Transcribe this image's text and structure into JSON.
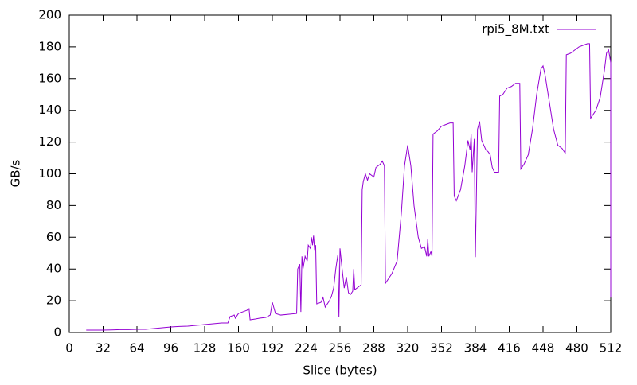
{
  "chart_data": {
    "type": "line",
    "xlabel": "Slice (bytes)",
    "ylabel": "GB/s",
    "x": [
      16,
      24,
      32,
      40,
      48,
      56,
      64,
      72,
      80,
      88,
      96,
      104,
      112,
      120,
      128,
      136,
      144,
      150,
      152,
      156,
      157,
      160,
      164,
      168,
      170,
      171,
      176,
      180,
      186,
      190,
      192,
      195,
      200,
      208,
      215,
      216,
      218,
      219,
      220,
      221,
      223,
      225,
      226,
      228,
      229,
      230,
      231,
      232,
      233,
      234,
      238,
      240,
      242,
      246,
      248,
      250,
      252,
      254,
      255,
      256,
      258,
      260,
      262,
      264,
      266,
      268,
      269,
      270,
      272,
      276,
      277,
      278,
      280,
      282,
      284,
      288,
      290,
      294,
      296,
      298,
      299,
      305,
      310,
      314,
      317,
      320,
      323,
      326,
      330,
      333,
      336,
      338,
      339,
      340,
      342,
      343,
      344,
      348,
      352,
      356,
      360,
      363,
      364,
      366,
      370,
      374,
      377,
      379,
      380,
      381,
      383,
      384,
      386,
      388,
      390,
      394,
      396,
      398,
      400,
      402,
      406,
      407,
      410,
      414,
      418,
      422,
      426,
      427,
      430,
      434,
      438,
      442,
      446,
      448,
      450,
      454,
      458,
      462,
      466,
      469,
      470,
      474,
      478,
      482,
      486,
      490,
      492,
      493,
      498,
      502,
      506,
      508,
      510,
      512,
      512
    ],
    "series": [
      {
        "name": "rpi5_8M.txt",
        "color": "#9400d3",
        "values": [
          1.5,
          1.5,
          1.5,
          1.6,
          1.8,
          1.8,
          2,
          2,
          2.5,
          3,
          3.5,
          3.8,
          4,
          4.5,
          5,
          5.5,
          6,
          6,
          10,
          11,
          9,
          12,
          13,
          14,
          15,
          8,
          8.5,
          9,
          9.5,
          11,
          19,
          12,
          11,
          11.5,
          12,
          40,
          43,
          13,
          48,
          40,
          48,
          45,
          55,
          53,
          60,
          55,
          61,
          52,
          55,
          18,
          19,
          22,
          16,
          20,
          23,
          28,
          40,
          49,
          10,
          53,
          40,
          28,
          35,
          25,
          24,
          26,
          40,
          27,
          28,
          30,
          90,
          95,
          100,
          96,
          100,
          98,
          104,
          106,
          108,
          105,
          31,
          37,
          45,
          75,
          105,
          118,
          105,
          80,
          60,
          53,
          54,
          48,
          59,
          48,
          51,
          48,
          125,
          127,
          130,
          131,
          132,
          132,
          86,
          83,
          90,
          105,
          121,
          115,
          125,
          101,
          122,
          47.5,
          128,
          133,
          121,
          115,
          114,
          112,
          104,
          101,
          101,
          149,
          150,
          154,
          155,
          157,
          157,
          103,
          106,
          112,
          128,
          150,
          166,
          168,
          162,
          145,
          128,
          118,
          116,
          113,
          175,
          176,
          178,
          180,
          181,
          182,
          182,
          135,
          140,
          148,
          165,
          176,
          178,
          170,
          22
        ]
      }
    ],
    "xlim": [
      0,
      512
    ],
    "xticks": [
      0,
      32,
      64,
      96,
      128,
      160,
      192,
      224,
      256,
      288,
      320,
      352,
      384,
      416,
      448,
      480,
      512
    ],
    "ylim": [
      0,
      200
    ],
    "yticks": [
      0,
      20,
      40,
      60,
      80,
      100,
      120,
      140,
      160,
      180,
      200
    ],
    "legend": "top-right",
    "grid": false
  }
}
